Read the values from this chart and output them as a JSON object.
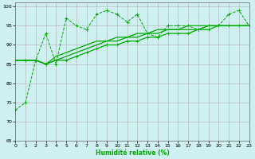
{
  "xlabel": "Humidité relative (%)",
  "xlim": [
    0,
    23
  ],
  "ylim": [
    65,
    101
  ],
  "yticks": [
    65,
    70,
    75,
    80,
    85,
    90,
    95,
    100
  ],
  "xticks": [
    0,
    1,
    2,
    3,
    4,
    5,
    6,
    7,
    8,
    9,
    10,
    11,
    12,
    13,
    14,
    15,
    16,
    17,
    18,
    19,
    20,
    21,
    22,
    23
  ],
  "background_color": "#cff0f0",
  "grid_color": "#b0b0b0",
  "line_color": "#00aa00",
  "line1_x": [
    0,
    1,
    2,
    3,
    4,
    5,
    6,
    7,
    8,
    9,
    10,
    11,
    12,
    13,
    14,
    15,
    16,
    17,
    18,
    19,
    20,
    21,
    22,
    23
  ],
  "line1_y": [
    73,
    75,
    86,
    93,
    85,
    97,
    95,
    94,
    98,
    99,
    98,
    96,
    98,
    93,
    92,
    95,
    95,
    95,
    94,
    95,
    95,
    98,
    99,
    95
  ],
  "line2_x": [
    0,
    1,
    2,
    3,
    4,
    5,
    6,
    7,
    8,
    9,
    10,
    11,
    12,
    13,
    14,
    15,
    16,
    17,
    18,
    19,
    20,
    21,
    22,
    23
  ],
  "line2_y": [
    86,
    86,
    86,
    85,
    86,
    86,
    87,
    88,
    89,
    90,
    90,
    91,
    91,
    92,
    92,
    93,
    93,
    93,
    94,
    94,
    95,
    95,
    95,
    95
  ],
  "line3_x": [
    0,
    1,
    2,
    3,
    4,
    5,
    6,
    7,
    8,
    9,
    10,
    11,
    12,
    13,
    14,
    15,
    16,
    17,
    18,
    19,
    20,
    21,
    22,
    23
  ],
  "line3_y": [
    86,
    86,
    86,
    85,
    86,
    87,
    88,
    89,
    90,
    91,
    91,
    92,
    92,
    93,
    93,
    94,
    94,
    94,
    94,
    95,
    95,
    95,
    95,
    95
  ],
  "line4_x": [
    0,
    1,
    2,
    3,
    4,
    5,
    6,
    7,
    8,
    9,
    10,
    11,
    12,
    13,
    14,
    15,
    16,
    17,
    18,
    19,
    20,
    21,
    22,
    23
  ],
  "line4_y": [
    86,
    86,
    86,
    85,
    87,
    88,
    89,
    90,
    91,
    91,
    92,
    92,
    93,
    93,
    94,
    94,
    94,
    95,
    95,
    95,
    95,
    95,
    95,
    95
  ]
}
